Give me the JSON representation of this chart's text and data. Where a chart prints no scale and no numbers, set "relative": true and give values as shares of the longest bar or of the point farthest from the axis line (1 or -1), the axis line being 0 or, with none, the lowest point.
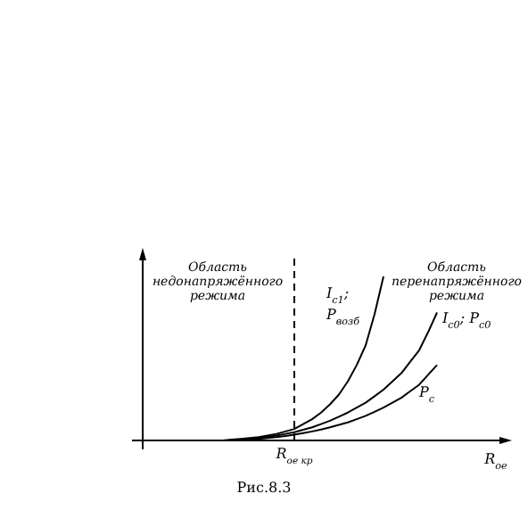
{
  "chart_data": {
    "type": "line",
    "relative": true,
    "legend": false,
    "grid": false,
    "marker": "none",
    "line_style": "solid",
    "xlabel": "R$_{oe}$",
    "categories": [
      null,
      null,
      null,
      null,
      null,
      null,
      null,
      null,
      null,
      null,
      null,
      null,
      null,
      null,
      null,
      null,
      null,
      null,
      null,
      null,
      null,
      null,
      null,
      null,
      null,
      null,
      null,
      null,
      null,
      null,
      null,
      null,
      null,
      null,
      null,
      null,
      null,
      null,
      null,
      null,
      null
    ],
    "series": [
      {
        "name": "I$_{c1}$; P$_{возб}$",
        "color": "#000000",
        "values": [
          null,
          null,
          null,
          null,
          null,
          null,
          null,
          null,
          null,
          0,
          0.005,
          0.01,
          0.015,
          0.02,
          0.03,
          0.04,
          0.055,
          0.07,
          0.1,
          0.13,
          0.17,
          0.22,
          0.28,
          0.36,
          0.46,
          0.58,
          0.77,
          1.0,
          null,
          null,
          null,
          null,
          null,
          null,
          null,
          null,
          null,
          null,
          null,
          null,
          null
        ]
      },
      {
        "name": "I$_{c0}$; P$_{c0}$",
        "color": "#000000",
        "values": [
          null,
          null,
          null,
          null,
          null,
          null,
          null,
          null,
          null,
          0,
          0.002,
          0.005,
          0.01,
          0.015,
          0.022,
          0.03,
          0.04,
          0.05,
          0.065,
          0.08,
          0.1,
          0.12,
          0.145,
          0.17,
          0.2,
          0.23,
          0.27,
          0.31,
          0.36,
          0.41,
          0.48,
          0.55,
          0.66,
          0.78,
          null,
          null,
          null,
          null,
          null,
          null,
          null
        ]
      },
      {
        "name": "P$_{c}$",
        "color": "#000000",
        "values": [
          null,
          null,
          null,
          null,
          null,
          null,
          null,
          null,
          null,
          0,
          0.001,
          0.003,
          0.006,
          0.01,
          0.015,
          0.02,
          0.027,
          0.035,
          0.045,
          0.055,
          0.067,
          0.08,
          0.095,
          0.11,
          0.13,
          0.15,
          0.175,
          0.2,
          0.23,
          0.26,
          0.3,
          0.34,
          0.4,
          0.46,
          null,
          null,
          null,
          null,
          null,
          null,
          null
        ]
      }
    ],
    "annotations": [
      "Область недонапряжённого режима",
      "Область перенапряжённого режима",
      {
        "text": "R$_{oe кр}$"
      },
      "Рис.8.3"
    ]
  }
}
